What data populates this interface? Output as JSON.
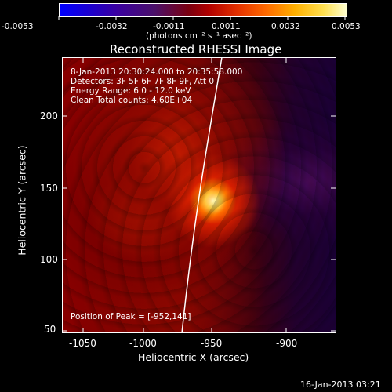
{
  "colorbar": {
    "tick_labels": [
      "-0.0053",
      "-0.0032",
      "-0.0011",
      "0.0011",
      "0.0032",
      "0.0053"
    ],
    "units_label": "(photons cm⁻² s⁻¹ asec⁻²)",
    "colors": [
      "#0000ff",
      "#3a00a8",
      "#5c1a6e",
      "#b00000",
      "#ff6a00",
      "#ffd000",
      "#ffffc8"
    ]
  },
  "plot": {
    "title": "Reconstructed RHESSI Image",
    "x_label": "Heliocentric X (arcsec)",
    "y_label": "Heliocentric Y (arcsec)",
    "x_ticks": [
      "-1050",
      "-1000",
      "-950",
      "-900"
    ],
    "y_ticks": [
      "200",
      "150",
      "100",
      "50"
    ],
    "info_lines": [
      "8-Jan-2013 20:30:24.000 to 20:35:58.000",
      "Detectors: 3F 5F 6F 7F 8F 9F, Att 0",
      "Energy Range: 6.0 - 12.0 keV",
      "Clean    Total counts: 4.60E+04"
    ],
    "peak_text": "Position of Peak = [-952,141]"
  },
  "footer": {
    "timestamp": "16-Jan-2013 03:21"
  }
}
